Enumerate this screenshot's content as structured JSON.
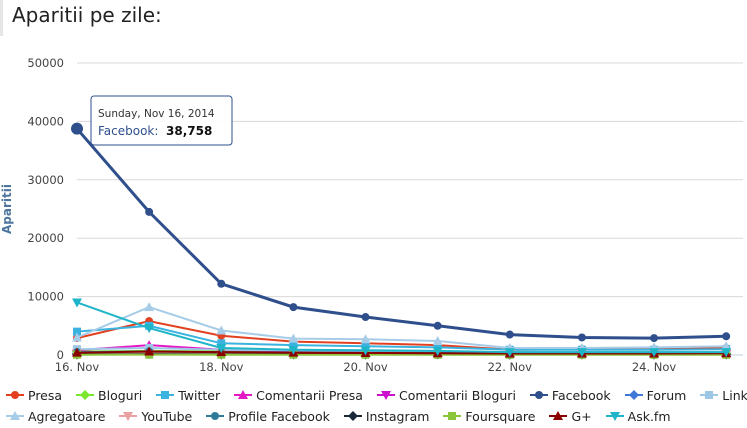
{
  "page": {
    "title": "Aparitii pe zile:"
  },
  "chart_data": {
    "type": "line",
    "title": "",
    "ylabel": "Aparitii",
    "xlabel": "",
    "ylim": [
      0,
      50000
    ],
    "yticks": [
      0,
      10000,
      20000,
      30000,
      40000,
      50000
    ],
    "ytick_labels": [
      "0",
      "10000",
      "20000",
      "30000",
      "40000",
      "50000"
    ],
    "x": [
      "2014-11-16",
      "2014-11-17",
      "2014-11-18",
      "2014-11-19",
      "2014-11-20",
      "2014-11-21",
      "2014-11-22",
      "2014-11-23",
      "2014-11-24",
      "2014-11-25"
    ],
    "xtick_labels": [
      {
        "x": "2014-11-16",
        "label": "16. Nov"
      },
      {
        "x": "2014-11-18",
        "label": "18. Nov"
      },
      {
        "x": "2014-11-20",
        "label": "20. Nov"
      },
      {
        "x": "2014-11-22",
        "label": "22. Nov"
      },
      {
        "x": "2014-11-24",
        "label": "24. Nov"
      }
    ],
    "grid": true,
    "legend_position": "bottom",
    "series": [
      {
        "name": "Presa",
        "color": "#e2401f",
        "marker": "circle",
        "values": [
          2900,
          5800,
          3300,
          2300,
          2000,
          1700,
          900,
          1000,
          1000,
          1200
        ]
      },
      {
        "name": "Bloguri",
        "color": "#7ce62c",
        "marker": "diamond",
        "values": [
          600,
          700,
          600,
          500,
          400,
          400,
          300,
          300,
          300,
          300
        ]
      },
      {
        "name": "Twitter",
        "color": "#3ab3e0",
        "marker": "square",
        "values": [
          4000,
          5000,
          2000,
          1700,
          1500,
          1300,
          900,
          900,
          900,
          1000
        ]
      },
      {
        "name": "Comentarii Presa",
        "color": "#e618c6",
        "marker": "triangle",
        "values": [
          800,
          1700,
          900,
          700,
          600,
          500,
          400,
          400,
          400,
          400
        ]
      },
      {
        "name": "Comentarii Bloguri",
        "color": "#cc10cc",
        "marker": "triangle-down",
        "values": [
          200,
          300,
          200,
          200,
          200,
          150,
          100,
          100,
          100,
          100
        ]
      },
      {
        "name": "Facebook",
        "color": "#2f4f8c",
        "marker": "circle",
        "values": [
          38758,
          24500,
          12200,
          8200,
          6500,
          5000,
          3500,
          3000,
          2900,
          3200
        ]
      },
      {
        "name": "Forum",
        "color": "#3f78d6",
        "marker": "diamond",
        "values": [
          300,
          400,
          300,
          300,
          250,
          200,
          150,
          150,
          150,
          150
        ]
      },
      {
        "name": "Linkedin",
        "color": "#9cc8e6",
        "marker": "square",
        "values": [
          1000,
          1200,
          900,
          800,
          700,
          600,
          500,
          500,
          500,
          500
        ]
      },
      {
        "name": "Agregatoare",
        "color": "#a6cce8",
        "marker": "triangle",
        "values": [
          3000,
          8200,
          4200,
          2800,
          2700,
          2400,
          1200,
          1200,
          1300,
          1500
        ]
      },
      {
        "name": "YouTube",
        "color": "#e8a0a0",
        "marker": "triangle-down",
        "values": [
          300,
          300,
          300,
          250,
          250,
          200,
          200,
          200,
          200,
          200
        ]
      },
      {
        "name": "Profile Facebook",
        "color": "#2f7c98",
        "marker": "circle",
        "values": [
          500,
          600,
          500,
          450,
          400,
          350,
          300,
          300,
          300,
          300
        ]
      },
      {
        "name": "Instagram",
        "color": "#1a2a3a",
        "marker": "diamond",
        "values": [
          100,
          150,
          100,
          100,
          100,
          100,
          80,
          80,
          80,
          80
        ]
      },
      {
        "name": "Foursquare",
        "color": "#8cc43c",
        "marker": "square",
        "values": [
          50,
          60,
          50,
          50,
          50,
          40,
          40,
          40,
          40,
          40
        ]
      },
      {
        "name": "G+",
        "color": "#8b0000",
        "marker": "triangle",
        "values": [
          400,
          600,
          500,
          400,
          350,
          300,
          250,
          250,
          250,
          300
        ]
      },
      {
        "name": "Ask.fm",
        "color": "#1fb5c8",
        "marker": "triangle-down",
        "values": [
          9000,
          4600,
          1200,
          900,
          800,
          700,
          500,
          500,
          500,
          500
        ]
      }
    ],
    "tooltip": {
      "date": "Sunday, Nov 16, 2014",
      "series": "Facebook",
      "value": "38,758"
    }
  }
}
